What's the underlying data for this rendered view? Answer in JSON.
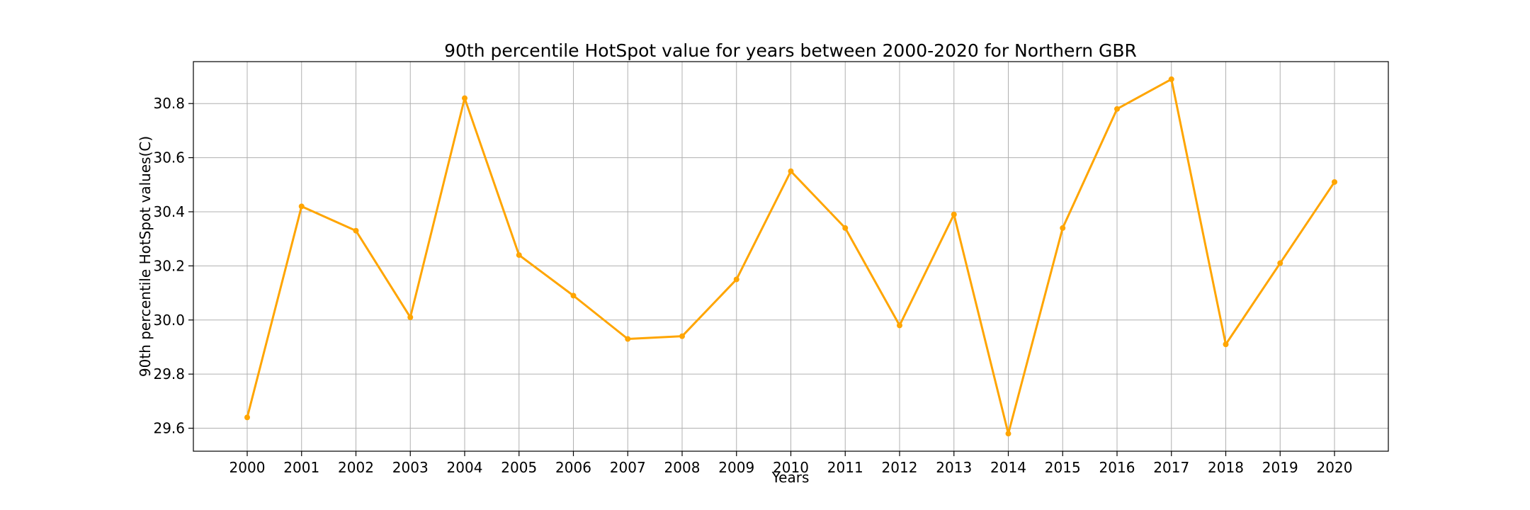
{
  "chart_data": {
    "type": "line",
    "title": "90th percentile HotSpot value for years between 2000-2020 for Northern GBR",
    "xlabel": "Years",
    "ylabel": "90th percentile HotSpot values(C)",
    "categories": [
      "2000",
      "2001",
      "2002",
      "2003",
      "2004",
      "2005",
      "2006",
      "2007",
      "2008",
      "2009",
      "2010",
      "2011",
      "2012",
      "2013",
      "2014",
      "2015",
      "2016",
      "2017",
      "2018",
      "2019",
      "2020"
    ],
    "series": [
      {
        "values": [
          29.64,
          30.42,
          30.33,
          30.01,
          30.82,
          30.24,
          30.09,
          29.93,
          29.94,
          30.15,
          30.55,
          30.34,
          29.98,
          30.39,
          29.58,
          30.34,
          30.78,
          30.89,
          29.91,
          30.21,
          30.51
        ],
        "color": "#FFA500"
      }
    ],
    "yticks": [
      "29.6",
      "29.8",
      "30.0",
      "30.2",
      "30.4",
      "30.6",
      "30.8"
    ],
    "ylim": [
      29.515,
      30.955
    ],
    "grid": true
  }
}
